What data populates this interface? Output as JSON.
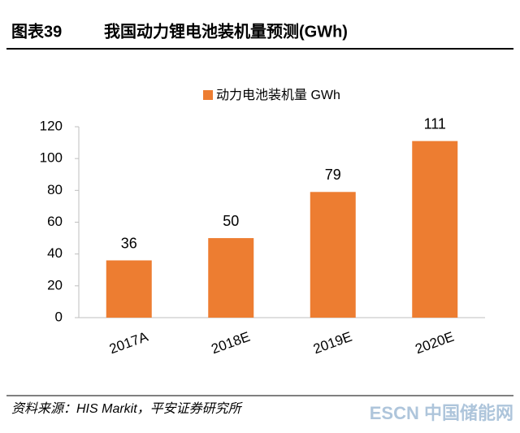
{
  "chart_data": {
    "type": "bar",
    "figure_label": "图表39",
    "title": "我国动力锂电池装机量预测(GWh)",
    "categories": [
      "2017A",
      "2018E",
      "2019E",
      "2020E"
    ],
    "series": [
      {
        "name": "动力电池装机量 GWh",
        "color": "#ed7d31",
        "values": [
          36,
          50,
          79,
          111
        ]
      }
    ],
    "ylim": [
      0,
      120
    ],
    "yticks": [
      0,
      20,
      40,
      60,
      80,
      100,
      120
    ],
    "source": "资料来源：HIS Markit，平安证券研究所",
    "watermark": "ESCN 中国储能网"
  }
}
